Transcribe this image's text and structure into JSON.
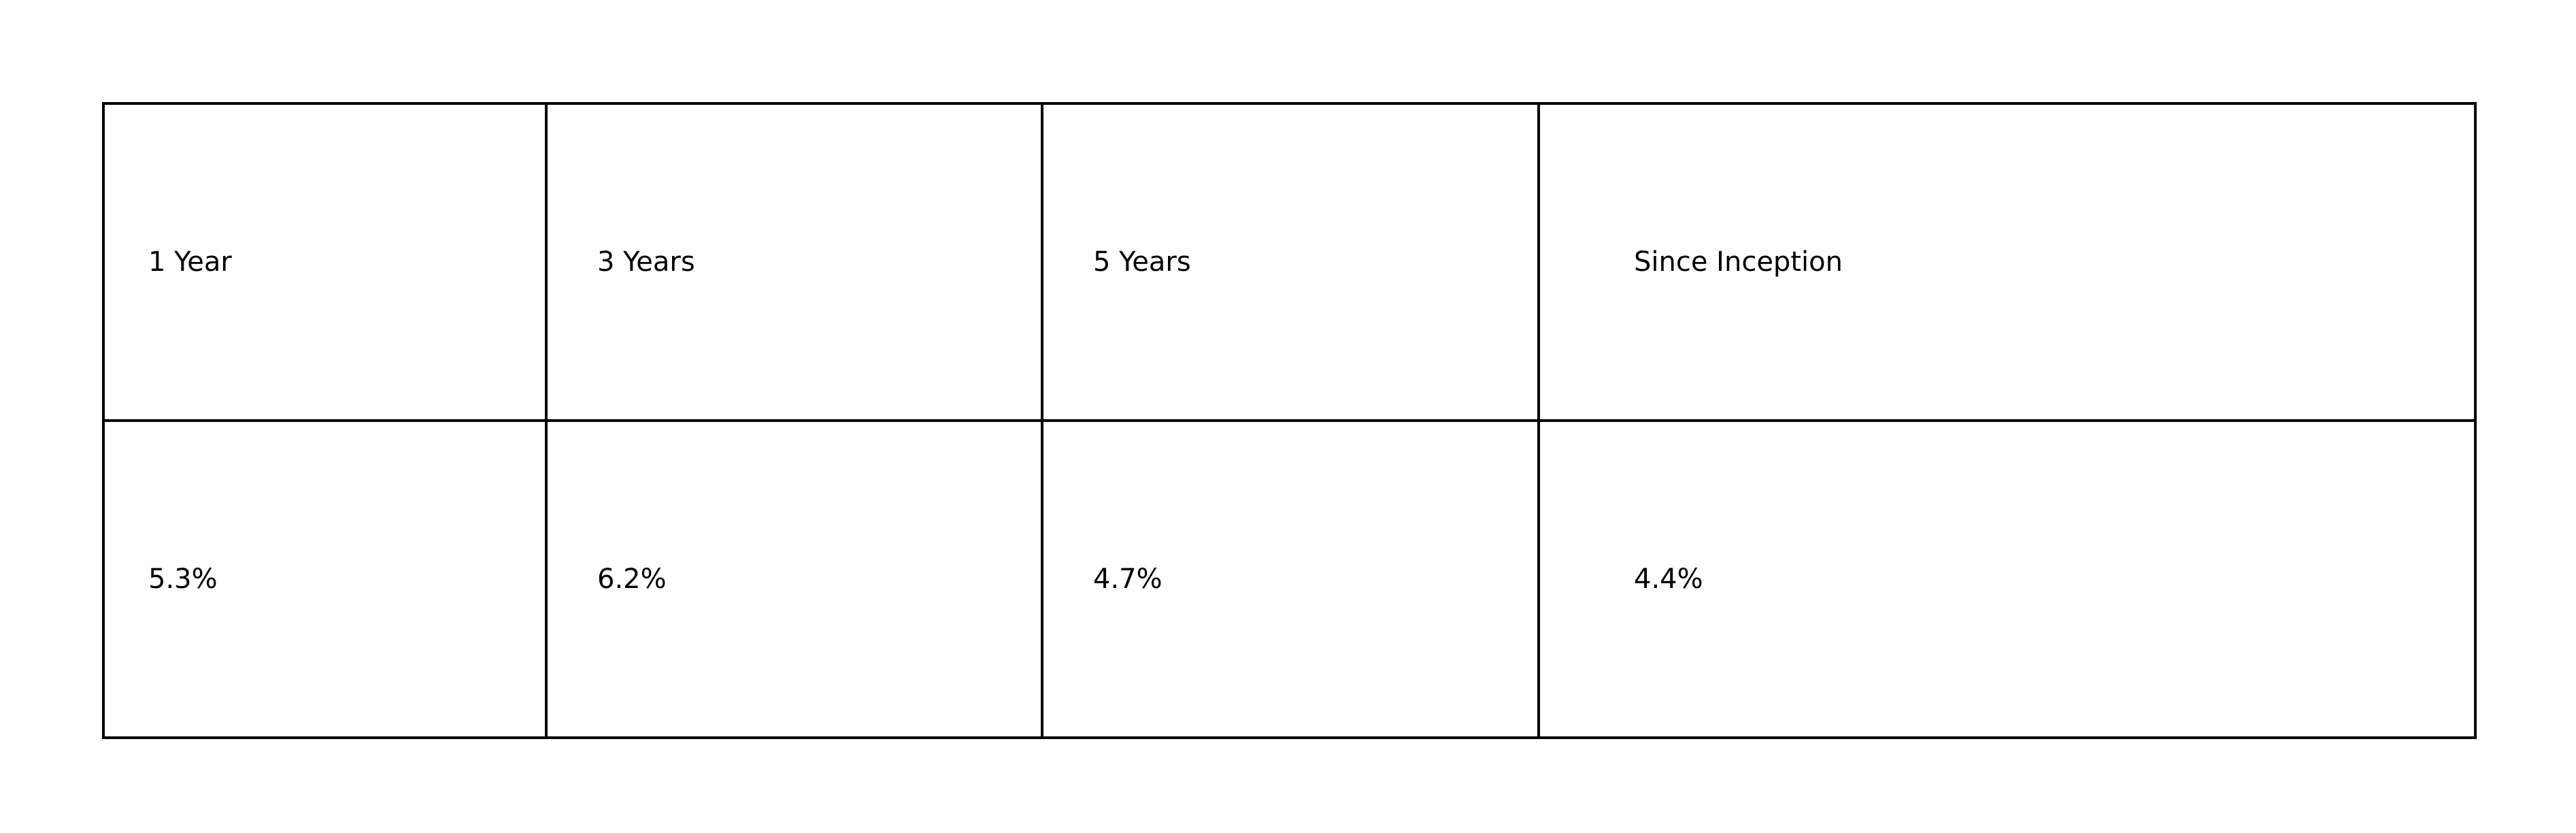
{
  "chart_data": {
    "type": "table",
    "columns": [
      "1 Year",
      "3 Years",
      "5 Years",
      "Since Inception"
    ],
    "rows": [
      [
        "5.3%",
        "6.2%",
        "4.7%",
        "4.4%"
      ]
    ]
  }
}
